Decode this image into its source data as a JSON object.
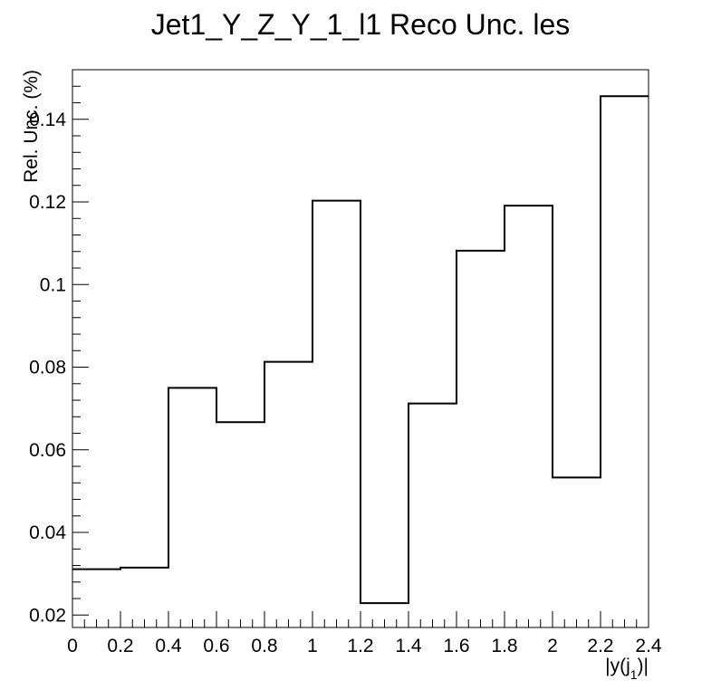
{
  "chart_data": {
    "type": "histogram-step",
    "title": "Jet1_Y_Z_Y_1_l1 Reco Unc. les",
    "xlabel": "|y(j",
    "xlabel_sub": "1",
    "xlabel_suffix": ")|",
    "ylabel": "Rel. Unc. (%)",
    "xlim": [
      0,
      2.4
    ],
    "ylim": [
      0.017,
      0.152
    ],
    "x_ticks": [
      0,
      0.2,
      0.4,
      0.6,
      0.8,
      1,
      1.2,
      1.4,
      1.6,
      1.8,
      2,
      2.2,
      2.4
    ],
    "x_tick_labels": [
      "0",
      "0.2",
      "0.4",
      "0.6",
      "0.8",
      "1",
      "1.2",
      "1.4",
      "1.6",
      "1.8",
      "2",
      "2.2",
      "2.4"
    ],
    "y_ticks": [
      0.02,
      0.04,
      0.06,
      0.08,
      0.1,
      0.12,
      0.14
    ],
    "y_tick_labels": [
      "0.02",
      "0.04",
      "0.06",
      "0.08",
      "0.1",
      "0.12",
      "0.14"
    ],
    "bin_edges": [
      0,
      0.2,
      0.4,
      0.6,
      0.8,
      1.0,
      1.2,
      1.4,
      1.6,
      1.8,
      2.0,
      2.2,
      2.4
    ],
    "values": [
      0.0311,
      0.0315,
      0.075,
      0.0667,
      0.0813,
      0.1203,
      0.0229,
      0.0712,
      0.1082,
      0.1191,
      0.0533,
      0.1456
    ],
    "grid": false,
    "legend": "none",
    "line_color": "#000000"
  }
}
